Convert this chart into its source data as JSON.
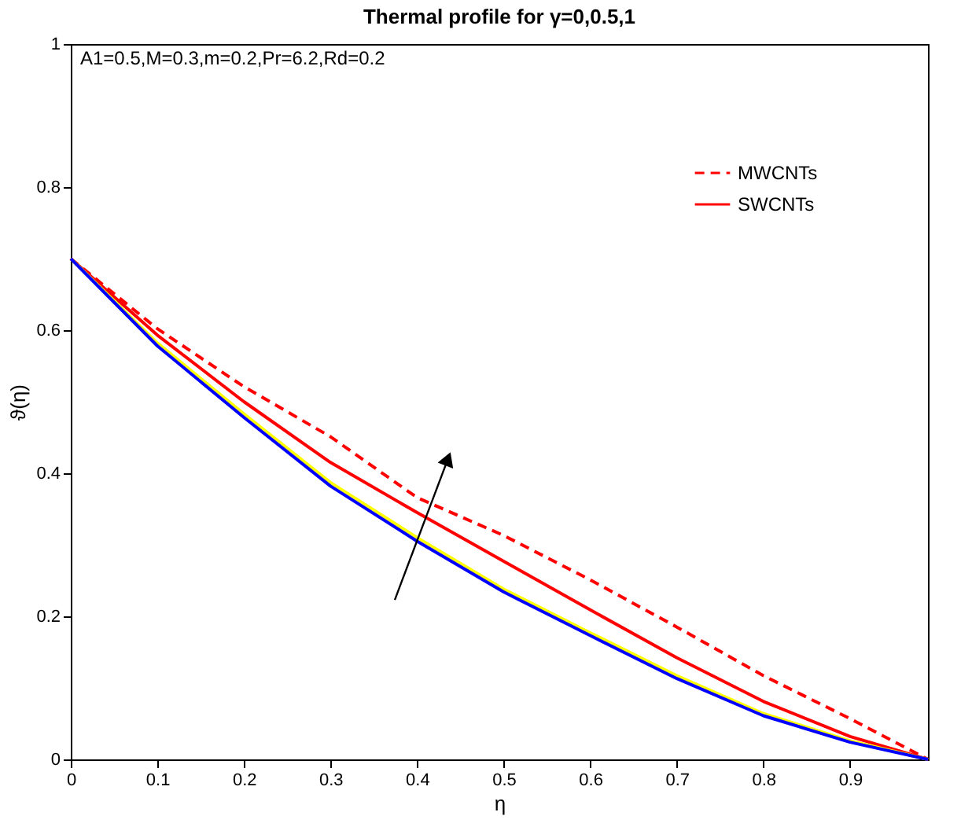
{
  "chart_data": {
    "type": "line",
    "title": "Thermal profile for γ=0,0.5,1",
    "xlabel": "η",
    "ylabel": "ϑ(η)",
    "x": [
      0,
      0.1,
      0.2,
      0.3,
      0.4,
      0.5,
      0.6,
      0.7,
      0.8,
      0.9,
      0.99
    ],
    "series": [
      {
        "name": "MWCNTs",
        "color": "#ff0000",
        "line_style": "dashed",
        "values": [
          0.7,
          0.602,
          0.521,
          0.451,
          0.366,
          0.313,
          0.251,
          0.185,
          0.117,
          0.057,
          0
        ]
      },
      {
        "name": "SWCNTs",
        "color": "#ff0000",
        "line_style": "solid",
        "values": [
          0.7,
          0.593,
          0.5,
          0.415,
          0.345,
          0.277,
          0.209,
          0.142,
          0.081,
          0.032,
          0
        ]
      },
      {
        "color": "#ffff00",
        "line_style": "solid",
        "values": [
          0.7,
          0.582,
          0.483,
          0.387,
          0.31,
          0.238,
          0.177,
          0.117,
          0.064,
          0.026,
          0
        ]
      },
      {
        "color": "#0000ff",
        "line_style": "solid",
        "values": [
          0.7,
          0.578,
          0.478,
          0.382,
          0.305,
          0.234,
          0.173,
          0.113,
          0.061,
          0.024,
          0
        ]
      }
    ],
    "xlim": [
      0,
      0.99
    ],
    "ylim": [
      0,
      1
    ],
    "xticks": [
      0,
      0.1,
      0.2,
      0.3,
      0.4,
      0.5,
      0.6,
      0.7,
      0.8,
      0.9
    ],
    "yticks": [
      0,
      0.2,
      0.4,
      0.6,
      0.8,
      1
    ],
    "legend": "top right",
    "grid": false,
    "annotations": [
      "A1=0.5,M=0.3,m=0.2,Pr=6.2,Rd=0.2"
    ]
  }
}
